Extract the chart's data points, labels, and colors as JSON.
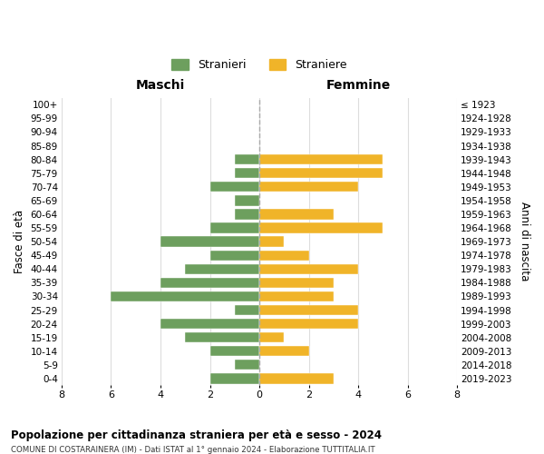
{
  "age_groups": [
    "100+",
    "95-99",
    "90-94",
    "85-89",
    "80-84",
    "75-79",
    "70-74",
    "65-69",
    "60-64",
    "55-59",
    "50-54",
    "45-49",
    "40-44",
    "35-39",
    "30-34",
    "25-29",
    "20-24",
    "15-19",
    "10-14",
    "5-9",
    "0-4"
  ],
  "birth_years": [
    "≤ 1923",
    "1924-1928",
    "1929-1933",
    "1934-1938",
    "1939-1943",
    "1944-1948",
    "1949-1953",
    "1954-1958",
    "1959-1963",
    "1964-1968",
    "1969-1973",
    "1974-1978",
    "1979-1983",
    "1984-1988",
    "1989-1993",
    "1994-1998",
    "1999-2003",
    "2004-2008",
    "2009-2013",
    "2014-2018",
    "2019-2023"
  ],
  "maschi": [
    0,
    0,
    0,
    0,
    1,
    1,
    2,
    1,
    1,
    2,
    4,
    2,
    3,
    4,
    6,
    1,
    4,
    3,
    2,
    1,
    2
  ],
  "femmine": [
    0,
    0,
    0,
    0,
    5,
    5,
    4,
    0,
    3,
    5,
    1,
    2,
    4,
    3,
    3,
    4,
    4,
    1,
    2,
    0,
    3
  ],
  "maschi_color": "#6d9f5e",
  "femmine_color": "#f0b429",
  "title": "Popolazione per cittadinanza straniera per età e sesso - 2024",
  "subtitle": "COMUNE DI COSTARAINERA (IM) - Dati ISTAT al 1° gennaio 2024 - Elaborazione TUTTITALIA.IT",
  "xlabel_left": "Maschi",
  "xlabel_right": "Femmine",
  "ylabel_left": "Fasce di età",
  "ylabel_right": "Anni di nascita",
  "legend_stranieri": "Stranieri",
  "legend_straniere": "Straniere",
  "xlim": 8,
  "background_color": "#ffffff",
  "grid_color": "#dddddd"
}
